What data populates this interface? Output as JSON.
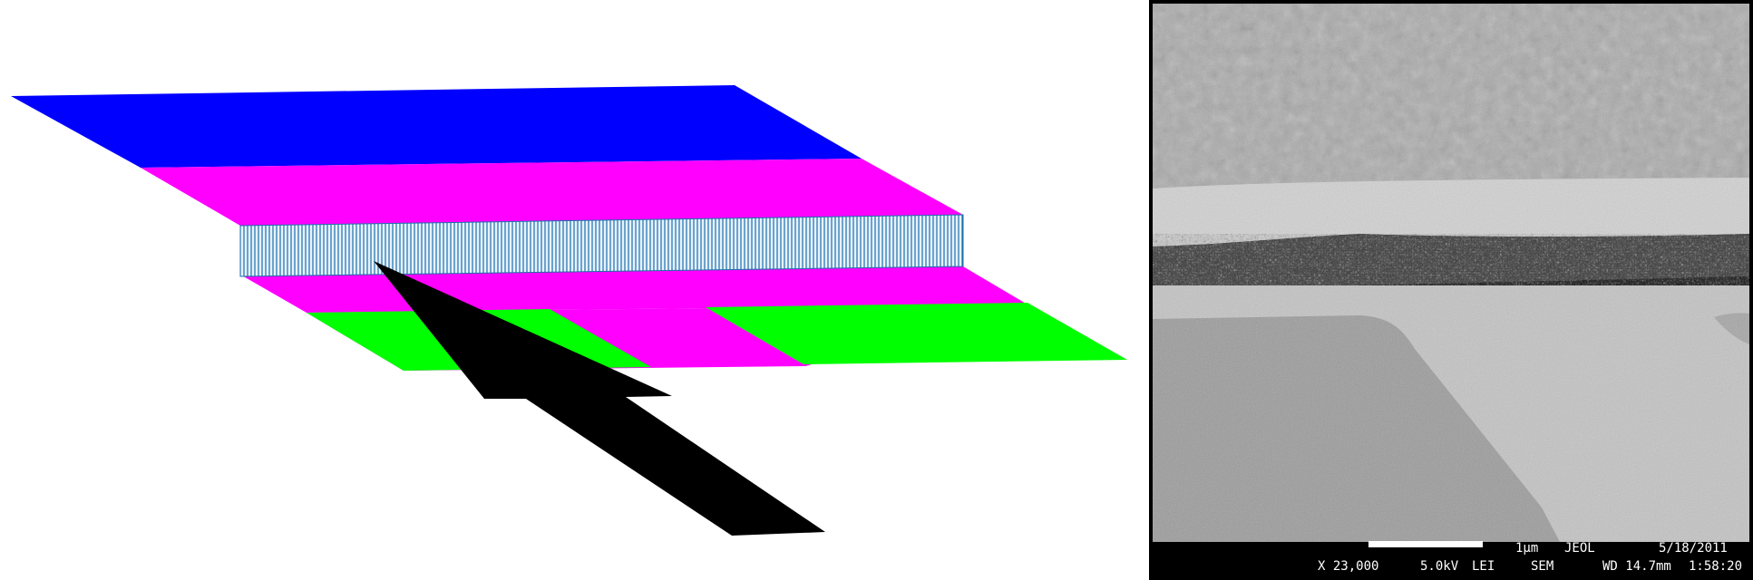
{
  "colors": {
    "top_layer": "#0000ff",
    "middle_layers": "#ff00ff",
    "channel_fill": "#e6f2ff",
    "channel_lines": "#1e6fa8",
    "electrodes": "#00ff00",
    "arrow": "#000000",
    "sem_background": "#000000",
    "sem_text": "#ffffff"
  },
  "sem_image": {
    "scale_bar_label": "1µm",
    "brand": "JEOL",
    "date": "5/18/2011",
    "magnification": "X 23,000",
    "voltage": "5.0kV",
    "detector": "LEI",
    "mode": "SEM",
    "working_distance": "WD 14.7mm",
    "time": "1:58:20"
  }
}
